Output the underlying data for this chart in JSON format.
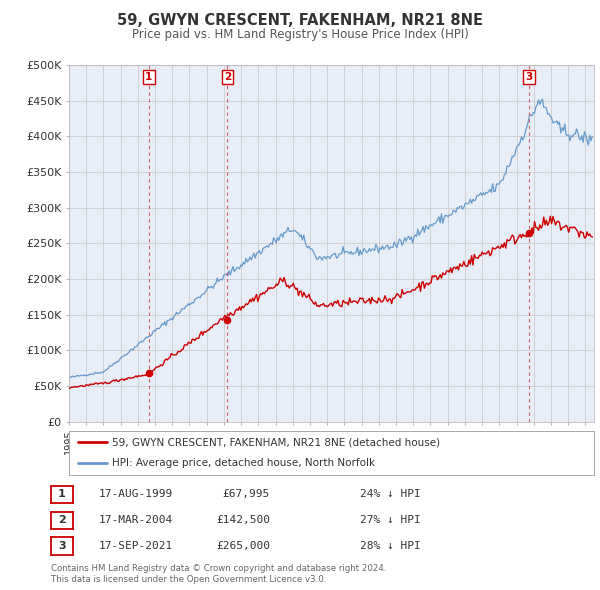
{
  "title": "59, GWYN CRESCENT, FAKENHAM, NR21 8NE",
  "subtitle": "Price paid vs. HM Land Registry's House Price Index (HPI)",
  "ylim": [
    0,
    500000
  ],
  "yticks": [
    0,
    50000,
    100000,
    150000,
    200000,
    250000,
    300000,
    350000,
    400000,
    450000,
    500000
  ],
  "ytick_labels": [
    "£0",
    "£50K",
    "£100K",
    "£150K",
    "£200K",
    "£250K",
    "£300K",
    "£350K",
    "£400K",
    "£450K",
    "£500K"
  ],
  "xlim_start": 1995.0,
  "xlim_end": 2025.5,
  "background_color": "#ffffff",
  "plot_bg_color": "#e8eef8",
  "grid_color": "#cccccc",
  "sale_color": "#cc0000",
  "hpi_color": "#6699cc",
  "transaction_line_color": "#cc4444",
  "transactions": [
    {
      "label": "1",
      "date_year": 1999.625,
      "price": 67995,
      "date_str": "17-AUG-1999",
      "price_str": "£67,995",
      "hpi_pct": "24% ↓ HPI"
    },
    {
      "label": "2",
      "date_year": 2004.208,
      "price": 142500,
      "date_str": "17-MAR-2004",
      "price_str": "£142,500",
      "hpi_pct": "27% ↓ HPI"
    },
    {
      "label": "3",
      "date_year": 2021.708,
      "price": 265000,
      "date_str": "17-SEP-2021",
      "price_str": "£265,000",
      "hpi_pct": "28% ↓ HPI"
    }
  ],
  "legend_sale_label": "59, GWYN CRESCENT, FAKENHAM, NR21 8NE (detached house)",
  "legend_hpi_label": "HPI: Average price, detached house, North Norfolk",
  "footer_line1": "Contains HM Land Registry data © Crown copyright and database right 2024.",
  "footer_line2": "This data is licensed under the Open Government Licence v3.0."
}
